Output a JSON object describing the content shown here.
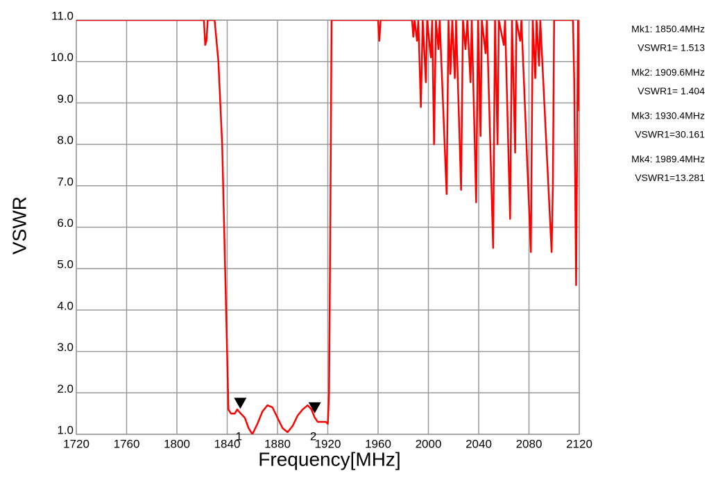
{
  "chart_data": {
    "type": "line",
    "xlabel": "Frequency[MHz]",
    "ylabel": "VSWR",
    "xlim": [
      1720,
      2120
    ],
    "ylim": [
      1,
      11
    ],
    "xticks": [
      1720,
      1760,
      1800,
      1840,
      1880,
      1920,
      1960,
      2000,
      2040,
      2080,
      2120
    ],
    "yticks": [
      {
        "value": 1,
        "label": "1.0"
      },
      {
        "value": 2,
        "label": "2.0"
      },
      {
        "value": 3,
        "label": "3.0"
      },
      {
        "value": 4,
        "label": "4.0"
      },
      {
        "value": 5,
        "label": "5.0"
      },
      {
        "value": 6,
        "label": "6.0"
      },
      {
        "value": 7,
        "label": "7.0"
      },
      {
        "value": 8,
        "label": "8.0"
      },
      {
        "value": 9,
        "label": "9.0"
      },
      {
        "value": 10,
        "label": "10.0"
      },
      {
        "value": 11,
        "label": "11.0"
      }
    ],
    "grid": true,
    "x": [
      1720,
      1821.5,
      1822.5,
      1823.5,
      1824.5,
      1830,
      1833,
      1836,
      1838.5,
      1841,
      1843,
      1846,
      1848,
      1850.4,
      1854,
      1857,
      1860,
      1864,
      1868,
      1872,
      1876,
      1880,
      1884,
      1888,
      1892,
      1896,
      1900,
      1904,
      1907,
      1909.6,
      1912,
      1916,
      1918.5,
      1920,
      1921,
      1922,
      1923,
      1960,
      1961,
      1962,
      1987,
      1988,
      1989,
      1991,
      1992,
      1994,
      1995.5,
      1998,
      1999,
      2002,
      2003,
      2004.5,
      2006,
      2008,
      2009,
      2014.5,
      2016,
      2017.5,
      2019,
      2021,
      2022,
      2026,
      2027.5,
      2029.5,
      2031,
      2033.5,
      2034.5,
      2038,
      2039.5,
      2041.5,
      2042.5,
      2045.5,
      2046.5,
      2051.5,
      2053,
      2055,
      2056,
      2060,
      2061,
      2065,
      2066.5,
      2069,
      2070,
      2073,
      2074,
      2081.5,
      2083,
      2085,
      2086,
      2088,
      2089,
      2098,
      2099,
      2100,
      2115,
      2116,
      2117.5,
      2119,
      2120
    ],
    "series": [
      {
        "name": "VSWR1",
        "color": "#ff0000",
        "values": [
          11,
          11,
          10.4,
          10.5,
          11,
          11,
          10.0,
          8.0,
          4.8,
          1.6,
          1.5,
          1.5,
          1.6,
          1.513,
          1.4,
          1.15,
          1.0,
          1.25,
          1.55,
          1.7,
          1.65,
          1.4,
          1.15,
          1.05,
          1.2,
          1.45,
          1.6,
          1.7,
          1.6,
          1.404,
          1.3,
          1.3,
          1.3,
          1.25,
          2.0,
          6.0,
          11,
          11,
          10.5,
          11,
          11,
          10.6,
          11,
          10.5,
          11,
          8.9,
          11,
          9.5,
          11,
          10.1,
          11,
          8.0,
          11,
          10.3,
          11,
          6.8,
          11,
          9.7,
          11,
          9.6,
          11,
          6.9,
          11,
          10.3,
          11,
          9.5,
          11,
          6.6,
          11,
          8.2,
          11,
          10.2,
          11,
          5.5,
          11,
          8.0,
          11,
          10.4,
          11,
          6.2,
          11,
          7.8,
          11,
          10.5,
          11,
          5.4,
          11,
          9.6,
          11,
          9.9,
          11,
          5.4,
          7.0,
          11,
          11,
          9.5,
          4.6,
          11,
          8.8
        ]
      }
    ],
    "markers": [
      {
        "label": "1",
        "x": 1850.4,
        "value": 1.513
      },
      {
        "label": "2",
        "x": 1909.6,
        "value": 1.404
      }
    ],
    "readouts": [
      {
        "line1": "Mk1: 1850.4MHz",
        "line2": "VSWR1= 1.513"
      },
      {
        "line1": "Mk2: 1909.6MHz",
        "line2": "VSWR1= 1.404"
      },
      {
        "line1": "Mk3: 1930.4MHz",
        "line2": "VSWR1=30.161"
      },
      {
        "line1": "Mk4: 1989.4MHz",
        "line2": "VSWR1=13.281"
      }
    ]
  }
}
